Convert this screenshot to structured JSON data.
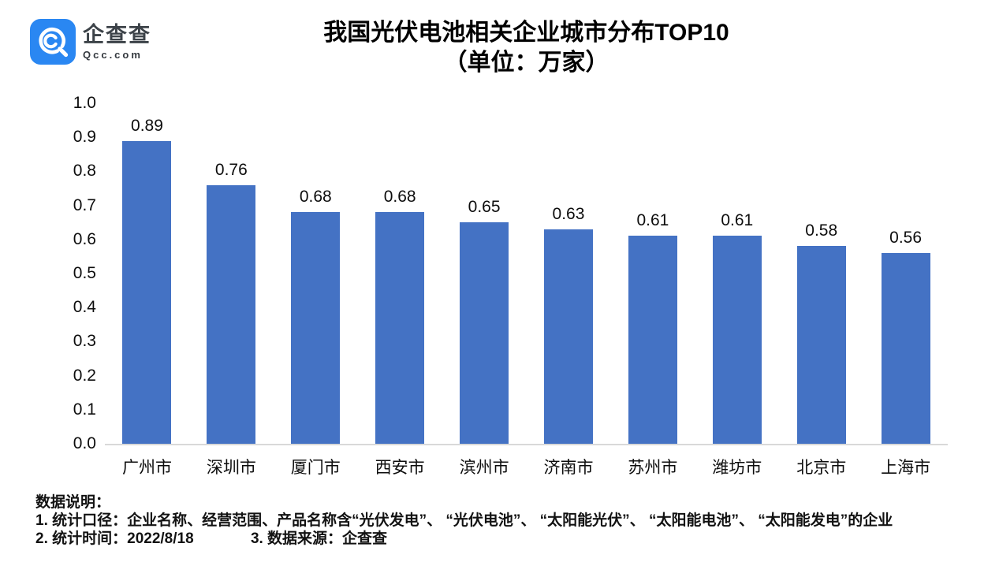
{
  "logo": {
    "name": "企查查",
    "domain": "Qcc.com",
    "brand_color": "#2a87f2"
  },
  "title": {
    "line1": "我国光伏电池相关企业城市分布TOP10",
    "line2": "（单位：万家）"
  },
  "chart_data": {
    "type": "bar",
    "title": "我国光伏电池相关企业城市分布TOP10（单位：万家）",
    "categories": [
      "广州市",
      "深圳市",
      "厦门市",
      "西安市",
      "滨州市",
      "济南市",
      "苏州市",
      "潍坊市",
      "北京市",
      "上海市"
    ],
    "values": [
      0.89,
      0.76,
      0.68,
      0.68,
      0.65,
      0.63,
      0.61,
      0.61,
      0.58,
      0.56
    ],
    "xlabel": "",
    "ylabel": "",
    "ylim": [
      0,
      1.0
    ],
    "yticks": [
      "1.0",
      "0.9",
      "0.8",
      "0.7",
      "0.6",
      "0.5",
      "0.4",
      "0.3",
      "0.2",
      "0.1",
      "0.0"
    ],
    "bar_color": "#4472c4",
    "axis_line_color": "#d9d9d9",
    "grid": false,
    "legend": "none",
    "data_labels": true
  },
  "footer": {
    "heading": "数据说明：",
    "line1": "1. 统计口径：企业名称、经营范围、产品名称含“光伏发电”、 “光伏电池”、 “太阳能光伏”、 “太阳能电池”、 “太阳能发电”的企业",
    "line2_left": "2. 统计时间：2022/8/18",
    "line2_right": "3. 数据来源：企查查"
  }
}
